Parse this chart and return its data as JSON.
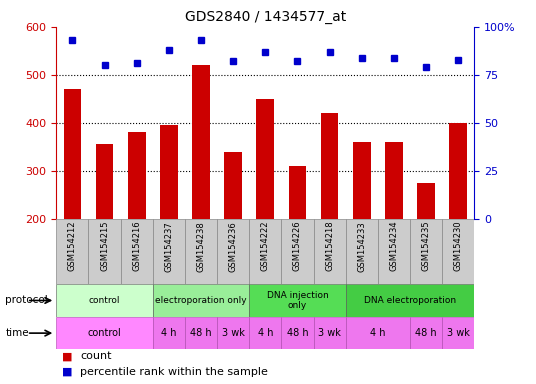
{
  "title": "GDS2840 / 1434577_at",
  "samples": [
    "GSM154212",
    "GSM154215",
    "GSM154216",
    "GSM154237",
    "GSM154238",
    "GSM154236",
    "GSM154222",
    "GSM154226",
    "GSM154218",
    "GSM154233",
    "GSM154234",
    "GSM154235",
    "GSM154230"
  ],
  "counts": [
    470,
    355,
    380,
    395,
    520,
    340,
    450,
    310,
    420,
    360,
    360,
    275,
    400
  ],
  "percentile_ranks": [
    93,
    80,
    81,
    88,
    93,
    82,
    87,
    82,
    87,
    84,
    84,
    79,
    83
  ],
  "bar_color": "#cc0000",
  "dot_color": "#0000cc",
  "ylim_left": [
    200,
    600
  ],
  "ylim_right": [
    0,
    100
  ],
  "yticks_left": [
    200,
    300,
    400,
    500,
    600
  ],
  "yticks_right": [
    0,
    25,
    50,
    75,
    100
  ],
  "bg_color": "#ffffff",
  "xticklabel_bg": "#cccccc",
  "xticklabel_border": "#888888",
  "protocol_row": [
    {
      "label": "control",
      "start": 0,
      "end": 3,
      "color": "#ccffcc"
    },
    {
      "label": "electroporation only",
      "start": 3,
      "end": 6,
      "color": "#99ee99"
    },
    {
      "label": "DNA injection\nonly",
      "start": 6,
      "end": 9,
      "color": "#55dd55"
    },
    {
      "label": "DNA electroporation",
      "start": 9,
      "end": 13,
      "color": "#44cc44"
    }
  ],
  "time_row": [
    {
      "label": "control",
      "start": 0,
      "end": 3,
      "color": "#ff88ff"
    },
    {
      "label": "4 h",
      "start": 3,
      "end": 4,
      "color": "#ee77ee"
    },
    {
      "label": "48 h",
      "start": 4,
      "end": 5,
      "color": "#ee77ee"
    },
    {
      "label": "3 wk",
      "start": 5,
      "end": 6,
      "color": "#ee77ee"
    },
    {
      "label": "4 h",
      "start": 6,
      "end": 7,
      "color": "#ee77ee"
    },
    {
      "label": "48 h",
      "start": 7,
      "end": 8,
      "color": "#ee77ee"
    },
    {
      "label": "3 wk",
      "start": 8,
      "end": 9,
      "color": "#ee77ee"
    },
    {
      "label": "4 h",
      "start": 9,
      "end": 11,
      "color": "#ee77ee"
    },
    {
      "label": "48 h",
      "start": 11,
      "end": 12,
      "color": "#ee77ee"
    },
    {
      "label": "3 wk",
      "start": 12,
      "end": 13,
      "color": "#ee77ee"
    }
  ]
}
